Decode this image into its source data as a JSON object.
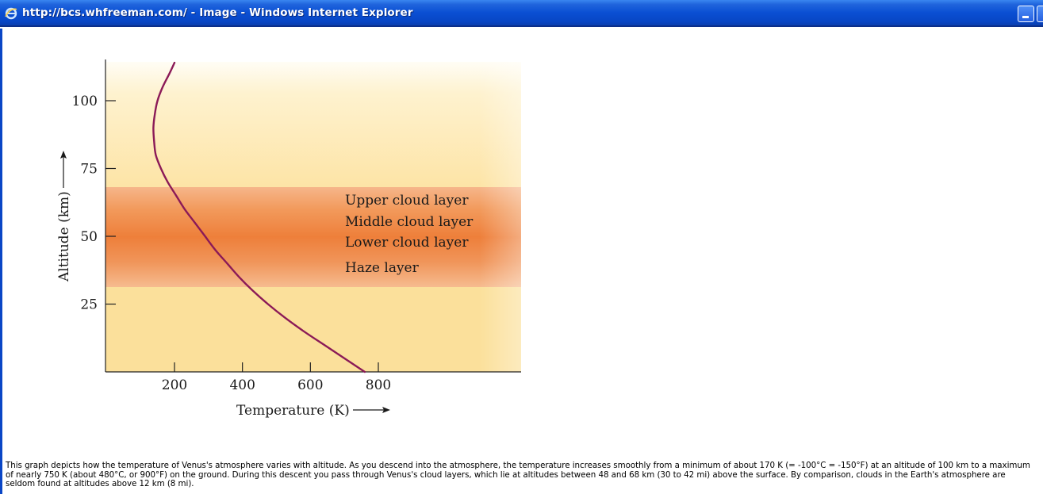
{
  "window": {
    "title": "http://bcs.whfreeman.com/ - Image - Windows Internet Explorer",
    "icon": "ie-icon",
    "controls": [
      "minimize-button",
      "maximize-button"
    ]
  },
  "chart_data": {
    "type": "line",
    "xlabel": "Temperature (K)",
    "ylabel": "Altitude (km)",
    "x_ticks": [
      "200",
      "400",
      "600",
      "800"
    ],
    "y_ticks": [
      "25",
      "50",
      "75",
      "100"
    ],
    "xlim": [
      0,
      1230
    ],
    "ylim": [
      0,
      115
    ],
    "series": [
      {
        "color": "#8b1a57",
        "points": [
          [
            760,
            0
          ],
          [
            700,
            5
          ],
          [
            640,
            10
          ],
          [
            580,
            15
          ],
          [
            525,
            20
          ],
          [
            475,
            25
          ],
          [
            430,
            30
          ],
          [
            390,
            35
          ],
          [
            355,
            40
          ],
          [
            320,
            45
          ],
          [
            290,
            50
          ],
          [
            260,
            55
          ],
          [
            230,
            60
          ],
          [
            205,
            65
          ],
          [
            180,
            70
          ],
          [
            160,
            75
          ],
          [
            145,
            80
          ],
          [
            140,
            85
          ],
          [
            138,
            90
          ],
          [
            142,
            95
          ],
          [
            150,
            100
          ],
          [
            165,
            105
          ],
          [
            185,
            110
          ],
          [
            200,
            114
          ]
        ]
      }
    ],
    "layer_labels": [
      "Upper cloud layer",
      "Middle cloud layer",
      "Lower cloud layer",
      "Haze layer"
    ],
    "bands": [
      {
        "from": 0,
        "to": 32,
        "color": "#fbe09a"
      },
      {
        "from": 32,
        "to": 68,
        "color": "#ef8a4a"
      },
      {
        "from": 68,
        "to": 115,
        "color": "#fde8ac"
      }
    ]
  },
  "caption": "This graph depicts how the temperature of Venus's atmosphere varies with altitude. As you descend into the atmosphere, the temperature increases smoothly from a minimum of about 170 K (= -100°C = -150°F) at an altitude of 100 km to a maximum of nearly 750 K (about 480°C, or 900°F) on the ground. During this descent you pass through Venus's cloud layers, which lie at altitudes between 48 and 68 km (30 to 42 mi) above the surface. By comparison, clouds in the Earth's atmosphere are seldom found at altitudes above 12 km (8 mi)."
}
